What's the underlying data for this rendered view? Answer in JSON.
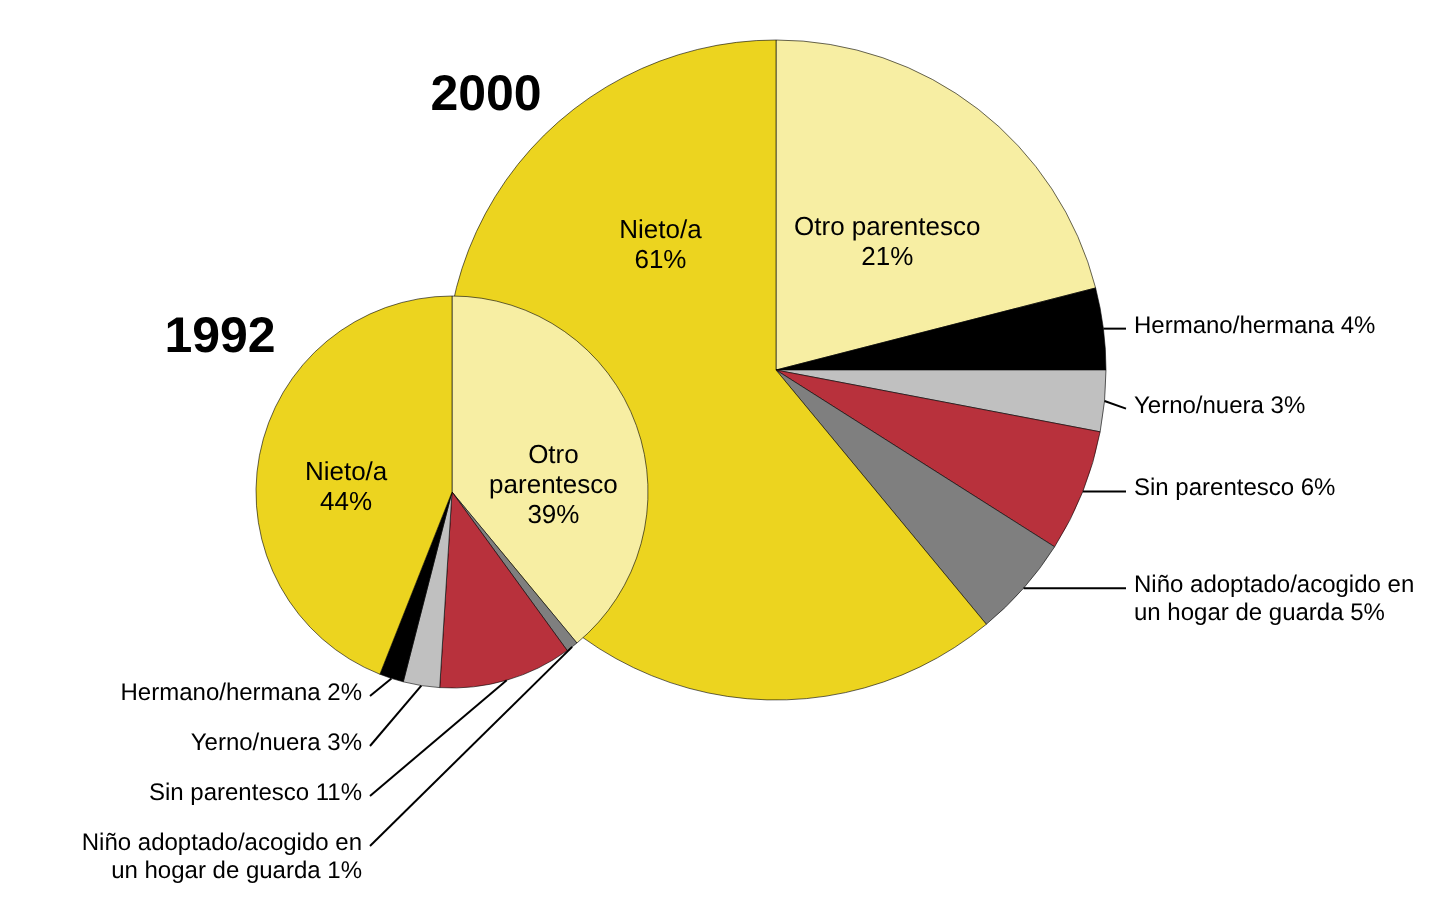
{
  "chart_data": [
    {
      "type": "pie",
      "title": "1992",
      "categories": [
        "Otro parentesco",
        "Niño adoptado/acogido en un hogar de guarda",
        "Sin parentesco",
        "Yerno/nuera",
        "Hermano/hermana",
        "Nieto/a"
      ],
      "values": [
        39,
        1,
        11,
        3,
        2,
        44
      ],
      "value_labels": [
        "39%",
        "1%",
        "11%",
        "3%",
        "2%",
        "44%"
      ],
      "colors": [
        "#f7eea3",
        "#7f7f7f",
        "#b8313c",
        "#c0c0c0",
        "#000000",
        "#ecd41f"
      ]
    },
    {
      "type": "pie",
      "title": "2000",
      "categories": [
        "Otro parentesco",
        "Hermano/hermana",
        "Yerno/nuera",
        "Sin parentesco",
        "Niño adoptado/acogido en un hogar de guarda",
        "Nieto/a"
      ],
      "values": [
        21,
        4,
        3,
        6,
        5,
        61
      ],
      "value_labels": [
        "21%",
        "4%",
        "3%",
        "6%",
        "5%",
        "61%"
      ],
      "colors": [
        "#f7eea3",
        "#000000",
        "#c0c0c0",
        "#b8313c",
        "#7f7f7f",
        "#ecd41f"
      ]
    }
  ]
}
